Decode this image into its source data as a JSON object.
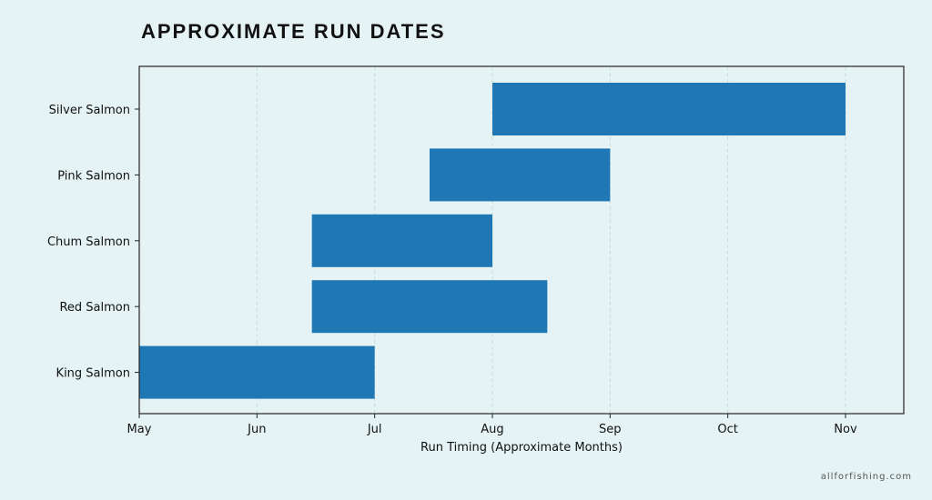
{
  "title": "APPROXIMATE RUN DATES",
  "watermark": "allforfishing.com",
  "colors": {
    "background": "#e5f3f5",
    "bar": "#1f77b4",
    "grid": "#c7dcd9",
    "axis": "#222222"
  },
  "chart_data": {
    "type": "bar",
    "orientation": "horizontal",
    "title": "APPROXIMATE RUN DATES",
    "xlabel": "Run Timing (Approximate Months)",
    "ylabel": "",
    "x_tick_labels": [
      "May",
      "Jun",
      "Jul",
      "Aug",
      "Sep",
      "Oct",
      "Nov"
    ],
    "xlim": [
      "May",
      "mid-Nov"
    ],
    "grid": "vertical dashed at month ticks",
    "categories": [
      "Silver Salmon",
      "Pink Salmon",
      "Chum Salmon",
      "Red Salmon",
      "King Salmon"
    ],
    "bars": [
      {
        "label": "Silver Salmon",
        "start": "Aug 1",
        "end": "Nov 1"
      },
      {
        "label": "Pink Salmon",
        "start": "Jul 15",
        "end": "Sep 1"
      },
      {
        "label": "Chum Salmon",
        "start": "Jun 15",
        "end": "Aug 1"
      },
      {
        "label": "Red Salmon",
        "start": "Jun 15",
        "end": "Aug 15"
      },
      {
        "label": "King Salmon",
        "start": "May 1",
        "end": "Jul 1"
      }
    ]
  }
}
